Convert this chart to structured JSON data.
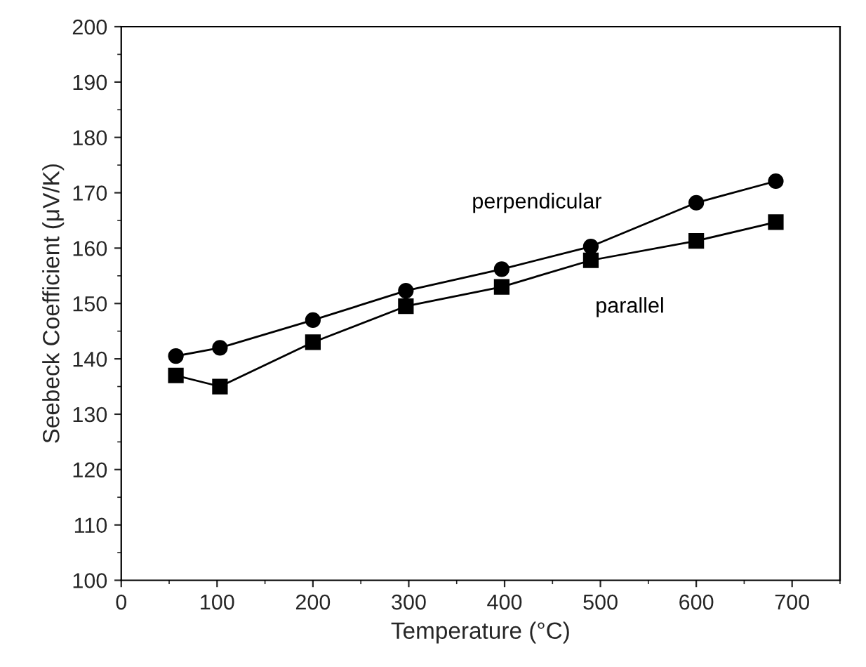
{
  "chart_data": {
    "type": "line",
    "xlabel": "Temperature (°C)",
    "ylabel": "Seebeck Coefficient (μV/K)",
    "x": [
      57,
      103,
      200,
      297,
      397,
      490,
      600,
      683
    ],
    "series": [
      {
        "name": "perpendicular",
        "color": "#000000",
        "marker": "circle",
        "values": [
          140.5,
          142,
          147,
          152.3,
          156.2,
          160.3,
          168.2,
          172.1
        ]
      },
      {
        "name": "parallel",
        "color": "#000000",
        "marker": "square",
        "values": [
          137,
          135,
          143,
          149.5,
          153,
          157.8,
          161.3,
          164.7
        ]
      }
    ],
    "xlim": [
      0,
      750
    ],
    "xticks": [
      0,
      100,
      200,
      300,
      400,
      500,
      600,
      700
    ],
    "ylim": [
      100,
      200
    ],
    "yticks": [
      100,
      110,
      120,
      130,
      140,
      150,
      160,
      170,
      180,
      190,
      200
    ],
    "grid": false,
    "line_style": "solid"
  }
}
